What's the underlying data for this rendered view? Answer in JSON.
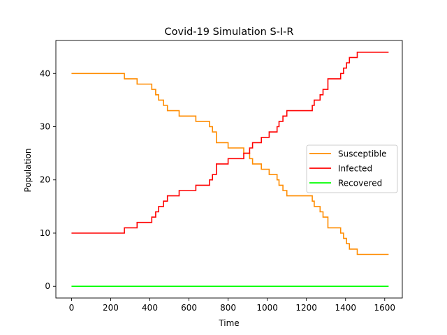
{
  "chart_data": {
    "type": "line",
    "title": "Covid-19 Simulation S-I-R",
    "xlabel": "Time",
    "ylabel": "Population",
    "xlim": [
      -80,
      1690
    ],
    "ylim": [
      -2.2,
      46.2
    ],
    "xticks": [
      0,
      200,
      400,
      600,
      800,
      1000,
      1200,
      1400,
      1600
    ],
    "yticks": [
      0,
      10,
      20,
      30,
      40
    ],
    "grid": false,
    "legend": "center-right",
    "step": true,
    "series": [
      {
        "name": "Susceptible",
        "color": "#ff8c00",
        "points": [
          [
            0,
            40
          ],
          [
            270,
            39
          ],
          [
            335,
            38
          ],
          [
            410,
            37
          ],
          [
            430,
            36
          ],
          [
            445,
            35
          ],
          [
            470,
            34
          ],
          [
            490,
            33
          ],
          [
            550,
            32
          ],
          [
            635,
            31
          ],
          [
            705,
            30
          ],
          [
            720,
            29
          ],
          [
            740,
            27
          ],
          [
            800,
            26
          ],
          [
            880,
            25
          ],
          [
            910,
            24
          ],
          [
            925,
            23
          ],
          [
            970,
            22
          ],
          [
            1010,
            21
          ],
          [
            1050,
            20
          ],
          [
            1060,
            19
          ],
          [
            1080,
            18
          ],
          [
            1100,
            17
          ],
          [
            1230,
            16
          ],
          [
            1240,
            15
          ],
          [
            1270,
            14
          ],
          [
            1285,
            13
          ],
          [
            1310,
            11
          ],
          [
            1375,
            10
          ],
          [
            1390,
            9
          ],
          [
            1405,
            8
          ],
          [
            1420,
            7
          ],
          [
            1460,
            6
          ],
          [
            1620,
            6
          ]
        ]
      },
      {
        "name": "Infected",
        "color": "#ff0000",
        "points": [
          [
            0,
            10
          ],
          [
            270,
            11
          ],
          [
            335,
            12
          ],
          [
            410,
            13
          ],
          [
            430,
            14
          ],
          [
            445,
            15
          ],
          [
            470,
            16
          ],
          [
            490,
            17
          ],
          [
            550,
            18
          ],
          [
            635,
            19
          ],
          [
            705,
            20
          ],
          [
            720,
            21
          ],
          [
            740,
            23
          ],
          [
            800,
            24
          ],
          [
            880,
            25
          ],
          [
            910,
            26
          ],
          [
            925,
            27
          ],
          [
            970,
            28
          ],
          [
            1010,
            29
          ],
          [
            1050,
            30
          ],
          [
            1060,
            31
          ],
          [
            1080,
            32
          ],
          [
            1100,
            33
          ],
          [
            1230,
            34
          ],
          [
            1240,
            35
          ],
          [
            1270,
            36
          ],
          [
            1285,
            37
          ],
          [
            1310,
            39
          ],
          [
            1375,
            40
          ],
          [
            1390,
            41
          ],
          [
            1405,
            42
          ],
          [
            1420,
            43
          ],
          [
            1460,
            44
          ],
          [
            1620,
            44
          ]
        ]
      },
      {
        "name": "Recovered",
        "color": "#00ff00",
        "points": [
          [
            0,
            0
          ],
          [
            1620,
            0
          ]
        ]
      }
    ]
  }
}
